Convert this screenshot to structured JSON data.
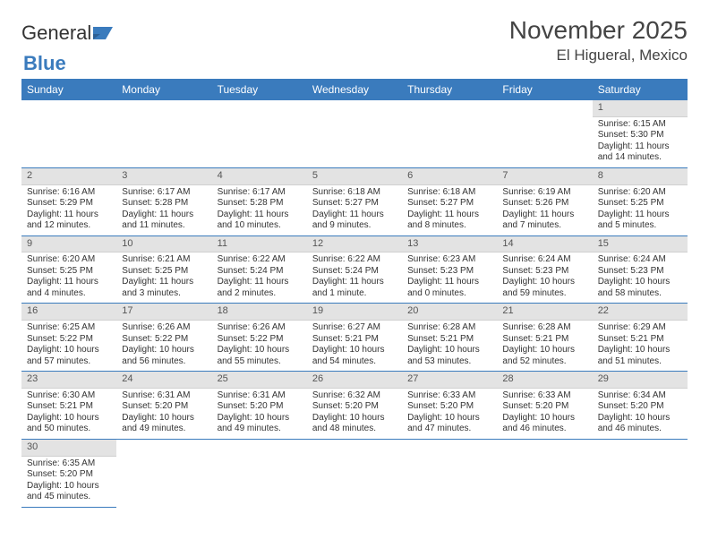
{
  "logo": {
    "text_a": "General",
    "text_b": "Blue"
  },
  "title": "November 2025",
  "location": "El Higueral, Mexico",
  "colors": {
    "header_bg": "#3a7bbd",
    "daynum_bg": "#e3e3e3",
    "border": "#3a7bbd"
  },
  "days_of_week": [
    "Sunday",
    "Monday",
    "Tuesday",
    "Wednesday",
    "Thursday",
    "Friday",
    "Saturday"
  ],
  "weeks": [
    [
      null,
      null,
      null,
      null,
      null,
      null,
      {
        "n": "1",
        "sunrise": "6:15 AM",
        "sunset": "5:30 PM",
        "daylight": "11 hours and 14 minutes."
      }
    ],
    [
      {
        "n": "2",
        "sunrise": "6:16 AM",
        "sunset": "5:29 PM",
        "daylight": "11 hours and 12 minutes."
      },
      {
        "n": "3",
        "sunrise": "6:17 AM",
        "sunset": "5:28 PM",
        "daylight": "11 hours and 11 minutes."
      },
      {
        "n": "4",
        "sunrise": "6:17 AM",
        "sunset": "5:28 PM",
        "daylight": "11 hours and 10 minutes."
      },
      {
        "n": "5",
        "sunrise": "6:18 AM",
        "sunset": "5:27 PM",
        "daylight": "11 hours and 9 minutes."
      },
      {
        "n": "6",
        "sunrise": "6:18 AM",
        "sunset": "5:27 PM",
        "daylight": "11 hours and 8 minutes."
      },
      {
        "n": "7",
        "sunrise": "6:19 AM",
        "sunset": "5:26 PM",
        "daylight": "11 hours and 7 minutes."
      },
      {
        "n": "8",
        "sunrise": "6:20 AM",
        "sunset": "5:25 PM",
        "daylight": "11 hours and 5 minutes."
      }
    ],
    [
      {
        "n": "9",
        "sunrise": "6:20 AM",
        "sunset": "5:25 PM",
        "daylight": "11 hours and 4 minutes."
      },
      {
        "n": "10",
        "sunrise": "6:21 AM",
        "sunset": "5:25 PM",
        "daylight": "11 hours and 3 minutes."
      },
      {
        "n": "11",
        "sunrise": "6:22 AM",
        "sunset": "5:24 PM",
        "daylight": "11 hours and 2 minutes."
      },
      {
        "n": "12",
        "sunrise": "6:22 AM",
        "sunset": "5:24 PM",
        "daylight": "11 hours and 1 minute."
      },
      {
        "n": "13",
        "sunrise": "6:23 AM",
        "sunset": "5:23 PM",
        "daylight": "11 hours and 0 minutes."
      },
      {
        "n": "14",
        "sunrise": "6:24 AM",
        "sunset": "5:23 PM",
        "daylight": "10 hours and 59 minutes."
      },
      {
        "n": "15",
        "sunrise": "6:24 AM",
        "sunset": "5:23 PM",
        "daylight": "10 hours and 58 minutes."
      }
    ],
    [
      {
        "n": "16",
        "sunrise": "6:25 AM",
        "sunset": "5:22 PM",
        "daylight": "10 hours and 57 minutes."
      },
      {
        "n": "17",
        "sunrise": "6:26 AM",
        "sunset": "5:22 PM",
        "daylight": "10 hours and 56 minutes."
      },
      {
        "n": "18",
        "sunrise": "6:26 AM",
        "sunset": "5:22 PM",
        "daylight": "10 hours and 55 minutes."
      },
      {
        "n": "19",
        "sunrise": "6:27 AM",
        "sunset": "5:21 PM",
        "daylight": "10 hours and 54 minutes."
      },
      {
        "n": "20",
        "sunrise": "6:28 AM",
        "sunset": "5:21 PM",
        "daylight": "10 hours and 53 minutes."
      },
      {
        "n": "21",
        "sunrise": "6:28 AM",
        "sunset": "5:21 PM",
        "daylight": "10 hours and 52 minutes."
      },
      {
        "n": "22",
        "sunrise": "6:29 AM",
        "sunset": "5:21 PM",
        "daylight": "10 hours and 51 minutes."
      }
    ],
    [
      {
        "n": "23",
        "sunrise": "6:30 AM",
        "sunset": "5:21 PM",
        "daylight": "10 hours and 50 minutes."
      },
      {
        "n": "24",
        "sunrise": "6:31 AM",
        "sunset": "5:20 PM",
        "daylight": "10 hours and 49 minutes."
      },
      {
        "n": "25",
        "sunrise": "6:31 AM",
        "sunset": "5:20 PM",
        "daylight": "10 hours and 49 minutes."
      },
      {
        "n": "26",
        "sunrise": "6:32 AM",
        "sunset": "5:20 PM",
        "daylight": "10 hours and 48 minutes."
      },
      {
        "n": "27",
        "sunrise": "6:33 AM",
        "sunset": "5:20 PM",
        "daylight": "10 hours and 47 minutes."
      },
      {
        "n": "28",
        "sunrise": "6:33 AM",
        "sunset": "5:20 PM",
        "daylight": "10 hours and 46 minutes."
      },
      {
        "n": "29",
        "sunrise": "6:34 AM",
        "sunset": "5:20 PM",
        "daylight": "10 hours and 46 minutes."
      }
    ],
    [
      {
        "n": "30",
        "sunrise": "6:35 AM",
        "sunset": "5:20 PM",
        "daylight": "10 hours and 45 minutes."
      },
      null,
      null,
      null,
      null,
      null,
      null
    ]
  ],
  "labels": {
    "sunrise": "Sunrise:",
    "sunset": "Sunset:",
    "daylight": "Daylight:"
  }
}
